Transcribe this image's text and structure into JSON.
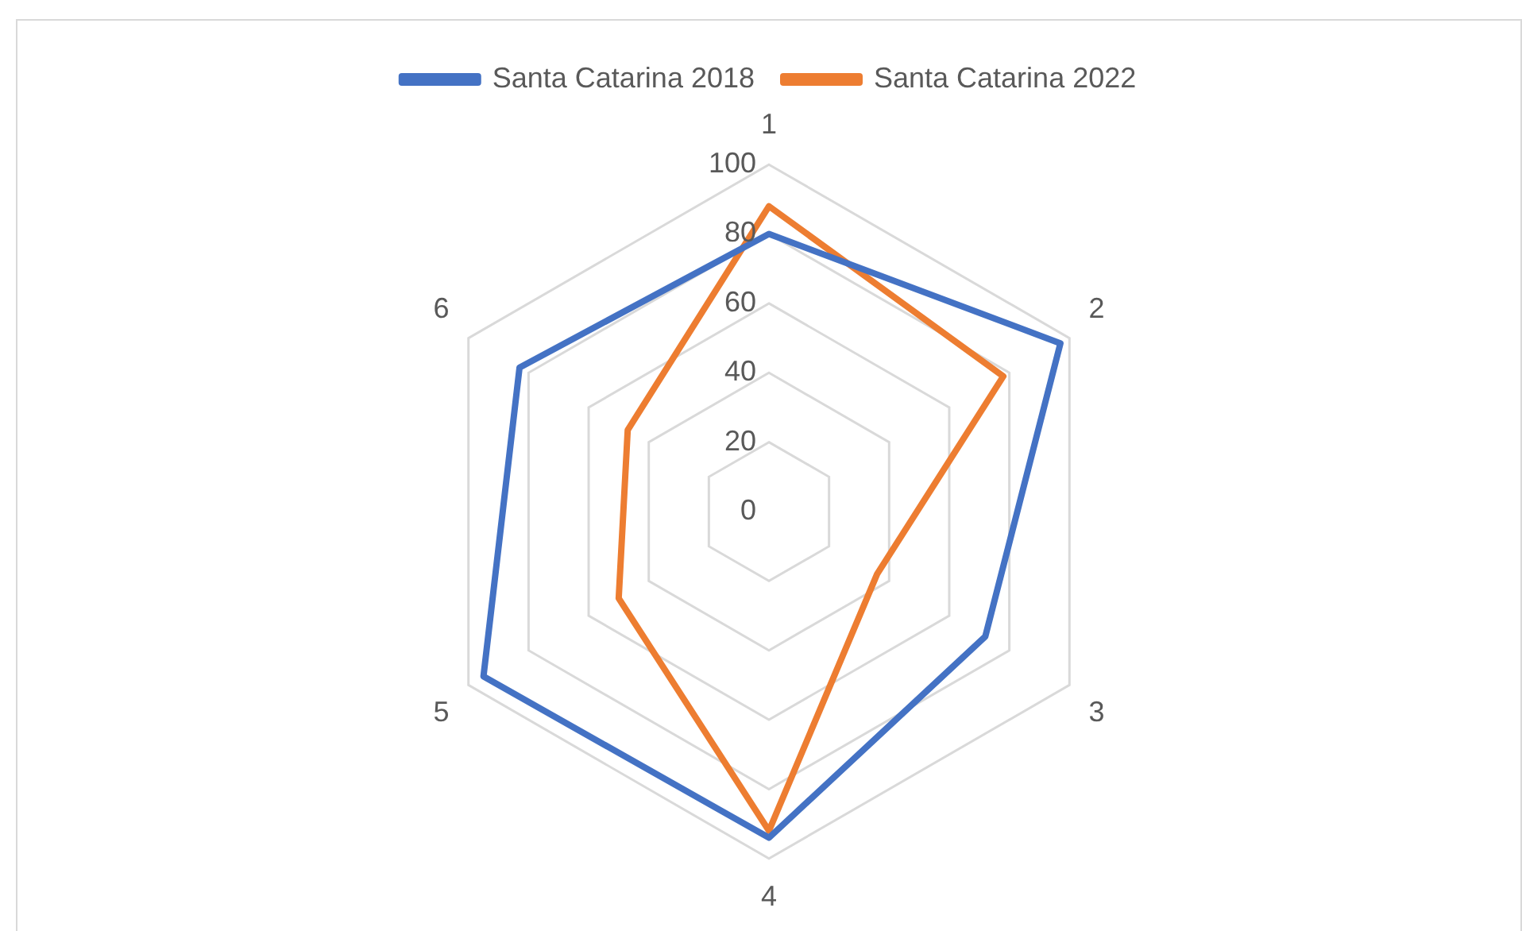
{
  "chart_data": {
    "type": "radar",
    "categories": [
      "1",
      "2",
      "3",
      "4",
      "5",
      "6"
    ],
    "series": [
      {
        "name": "Santa Catarina 2018",
        "color": "#4472c4",
        "values": [
          80,
          97,
          72,
          94,
          95,
          83
        ]
      },
      {
        "name": "Santa Catarina 2022",
        "color": "#ed7d31",
        "values": [
          88,
          78,
          36,
          92,
          50,
          47
        ]
      }
    ],
    "ylim": [
      0,
      100
    ],
    "yticks": [
      0,
      20,
      40,
      60,
      80,
      100
    ],
    "grid": true,
    "legend": "top",
    "marker": "none",
    "line_style": "solid"
  }
}
